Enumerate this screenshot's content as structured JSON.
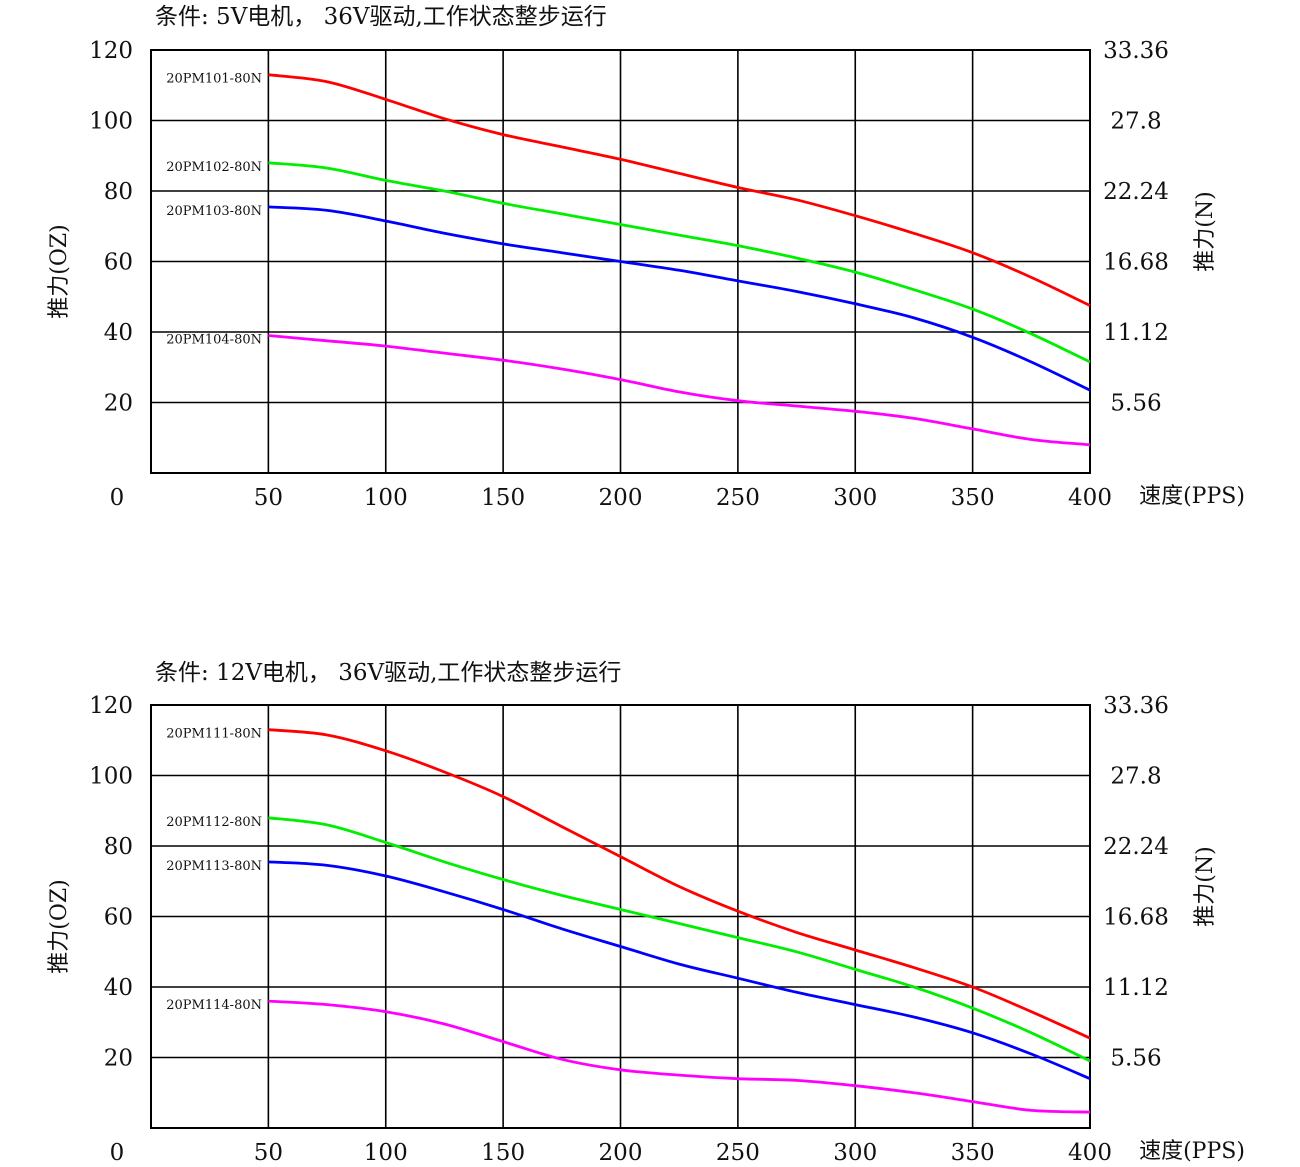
{
  "chart_data": [
    {
      "type": "line",
      "condition": "条件: 5V电机， 36V驱动,工作状态整步运行",
      "ylabel": "推力(OZ)",
      "y2label": "推力(N)",
      "xlabel": "速度(PPS)",
      "xlim": [
        0,
        400
      ],
      "ylim": [
        0,
        120
      ],
      "x_ticks": [
        "0",
        "50",
        "100",
        "150",
        "200",
        "250",
        "300",
        "350",
        "400"
      ],
      "y_ticks": [
        "20",
        "40",
        "60",
        "80",
        "100",
        "120"
      ],
      "y2_ticks": [
        "5.56",
        "11.12",
        "16.68",
        "22.24",
        "27.8",
        "33.36"
      ],
      "grid": true,
      "x": [
        50,
        75,
        100,
        125,
        150,
        175,
        200,
        225,
        250,
        275,
        300,
        325,
        350,
        375,
        400
      ],
      "series": [
        {
          "name": "20PM101-80N",
          "color": "#ff0000",
          "values": [
            113,
            111,
            106,
            100.5,
            96,
            92.5,
            89,
            85,
            81,
            77.5,
            73,
            68,
            62.5,
            55.5,
            47.5
          ]
        },
        {
          "name": "20PM102-80N",
          "color": "#00ee00",
          "values": [
            88,
            86.5,
            83,
            80,
            76.5,
            73.5,
            70.5,
            67.5,
            64.5,
            61,
            57,
            52,
            46.5,
            39.5,
            31.5
          ]
        },
        {
          "name": "20PM103-80N",
          "color": "#0000ff",
          "values": [
            75.5,
            74.5,
            71.5,
            68,
            65,
            62.5,
            60,
            57.5,
            54.5,
            51.5,
            48,
            44,
            38.5,
            31.5,
            23.5
          ]
        },
        {
          "name": "20PM104-80N",
          "color": "#ff00ff",
          "values": [
            39,
            37.5,
            36,
            34,
            32,
            29.5,
            26.5,
            23,
            20.5,
            19,
            17.5,
            15.5,
            12.5,
            9.5,
            8
          ]
        }
      ]
    },
    {
      "type": "line",
      "condition": "条件: 12V电机， 36V驱动,工作状态整步运行",
      "ylabel": "推力(OZ)",
      "y2label": "推力(N)",
      "xlabel": "速度(PPS)",
      "xlim": [
        0,
        400
      ],
      "ylim": [
        0,
        120
      ],
      "x_ticks": [
        "0",
        "50",
        "100",
        "150",
        "200",
        "250",
        "300",
        "350",
        "400"
      ],
      "y_ticks": [
        "20",
        "40",
        "60",
        "80",
        "100",
        "120"
      ],
      "y2_ticks": [
        "5.56",
        "11.12",
        "16.68",
        "22.24",
        "27.8",
        "33.36"
      ],
      "grid": true,
      "x": [
        50,
        75,
        100,
        125,
        150,
        175,
        200,
        225,
        250,
        275,
        300,
        325,
        350,
        375,
        400
      ],
      "series": [
        {
          "name": "20PM111-80N",
          "color": "#ff0000",
          "values": [
            113,
            111.5,
            107,
            101,
            94,
            85.5,
            77,
            68.5,
            61.5,
            55.5,
            50.5,
            45.5,
            40,
            33,
            25.5
          ]
        },
        {
          "name": "20PM112-80N",
          "color": "#00ee00",
          "values": [
            88,
            86,
            81,
            75.5,
            70.5,
            66,
            62,
            58,
            54,
            50,
            45,
            40,
            34,
            27,
            19
          ]
        },
        {
          "name": "20PM113-80N",
          "color": "#0000ff",
          "values": [
            75.5,
            74.5,
            71.5,
            67,
            62,
            56.5,
            51.5,
            46.5,
            42.5,
            38.5,
            35,
            31.5,
            27,
            21,
            14
          ]
        },
        {
          "name": "20PM114-80N",
          "color": "#ff00ff",
          "values": [
            36,
            35,
            33,
            29.5,
            24.5,
            19.5,
            16.5,
            15,
            14,
            13.5,
            12,
            10,
            7.5,
            5,
            4.5
          ]
        }
      ]
    }
  ]
}
